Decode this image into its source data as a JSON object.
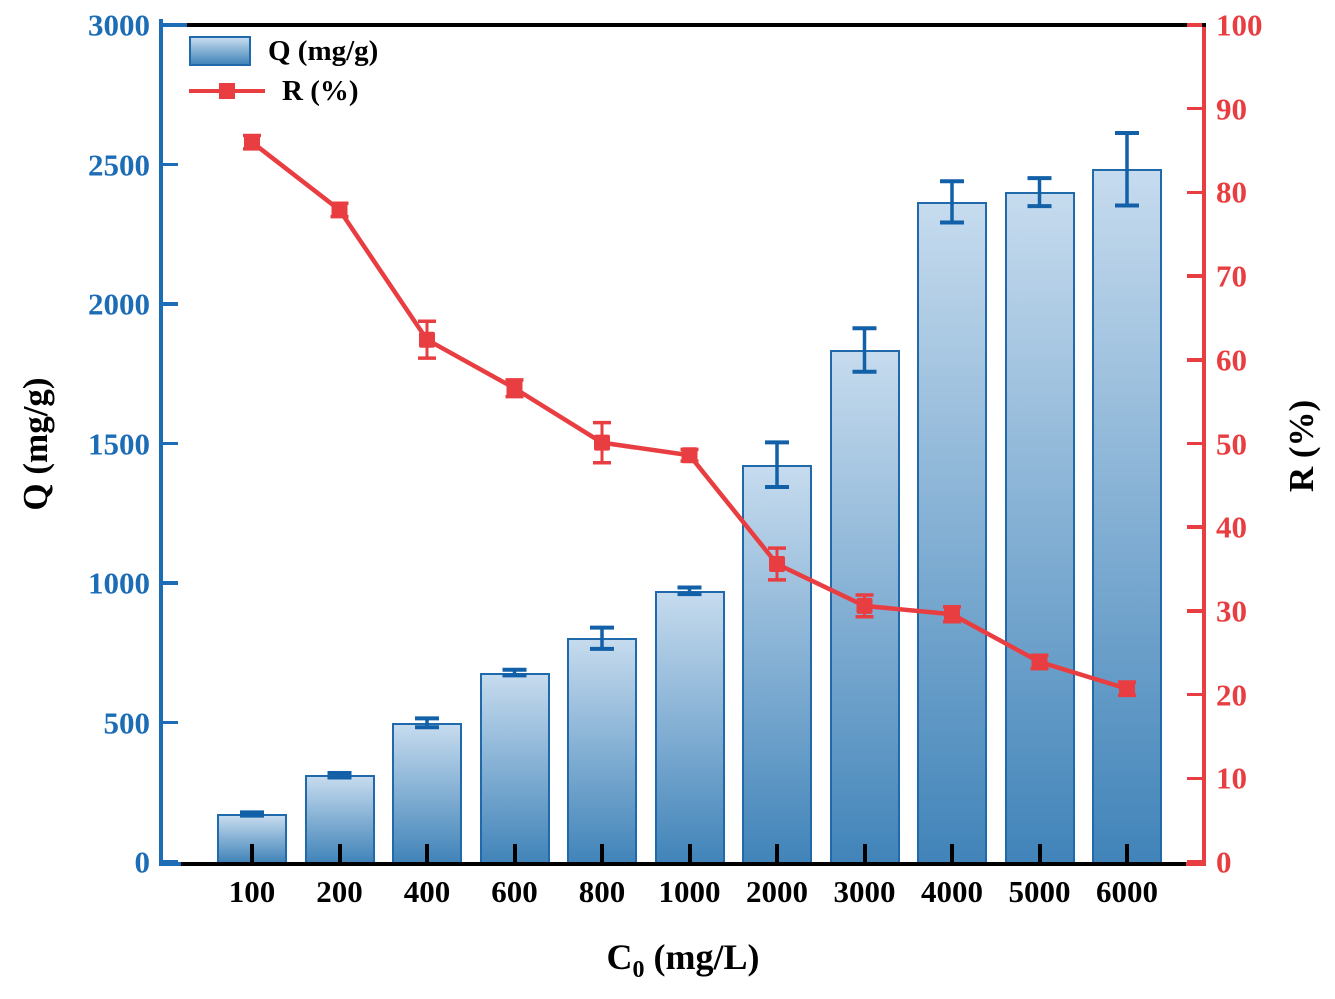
{
  "chart_data": {
    "type": "bar",
    "categories": [
      "100",
      "200",
      "400",
      "600",
      "800",
      "1000",
      "2000",
      "3000",
      "4000",
      "5000",
      "6000"
    ],
    "series": [
      {
        "name": "Q (mg/g)",
        "type": "bar",
        "axis": "left",
        "values": [
          172,
          311,
          499,
          679,
          802,
          972,
          1424,
          1835,
          2366,
          2401,
          2483
        ],
        "errors": [
          6,
          8,
          16,
          10,
          38,
          12,
          80,
          78,
          74,
          50,
          130
        ]
      },
      {
        "name": "R (%)",
        "type": "line",
        "axis": "right",
        "values": [
          86.0,
          77.9,
          62.4,
          56.6,
          50.1,
          48.6,
          35.6,
          30.6,
          29.6,
          23.9,
          20.7
        ],
        "errors": [
          0.8,
          0.8,
          2.2,
          1.0,
          2.4,
          0.7,
          1.9,
          1.3,
          0.9,
          0.8,
          0.8
        ]
      }
    ],
    "xlabel": {
      "main": "C",
      "sub": "0",
      "rest": " (mg/L)"
    },
    "ylabel_left": "Q (mg/g)",
    "ylabel_right": "R (%)",
    "ylim_left": [
      0,
      3000
    ],
    "ylim_right": [
      0,
      100
    ],
    "yticks_left": [
      0,
      500,
      1000,
      1500,
      2000,
      2500,
      3000
    ],
    "yticks_right": [
      0,
      10,
      20,
      30,
      40,
      50,
      60,
      70,
      80,
      90,
      100
    ],
    "legend": [
      "Q (mg/g)",
      "R (%)"
    ],
    "legend_position": "upper-left",
    "grid": false
  },
  "colors": {
    "bar_fill_top": "#c6dbee",
    "bar_fill_bottom": "#4184b9",
    "bar_border": "#2069ab",
    "bar_error": "#1160a8",
    "axis_left": "#1d6db6",
    "axis_right": "#e93e41",
    "line": "#e93e41",
    "axis_black": "#000000"
  }
}
